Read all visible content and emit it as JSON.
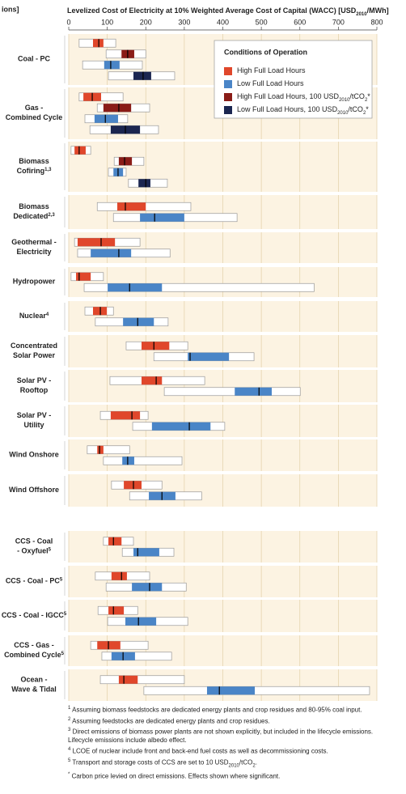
{
  "chart_data": {
    "type": "range",
    "corner_label": "ions]",
    "title": [
      {
        "text": "Levelized Cost of Electricity at 10% Weighted Average Cost of Capital (WACC) [USD"
      },
      {
        "sub": "2010"
      },
      {
        "text": "/MWh]"
      }
    ],
    "xlim": [
      0,
      800
    ],
    "xticks": [
      0,
      100,
      200,
      300,
      400,
      500,
      600,
      700,
      800
    ],
    "grid": true,
    "legend_title": "Conditions of Operation",
    "legend_position": "top-right",
    "categories": [
      {
        "lines": [
          "Coal - PC"
        ]
      },
      {
        "lines": [
          "Gas -",
          "Combined Cycle"
        ]
      },
      {
        "lines": [
          "Biomass",
          "Cofiring"
        ],
        "note": "1,3"
      },
      {
        "lines": [
          "Biomass",
          "Dedicated"
        ],
        "note": "2,3"
      },
      {
        "lines": [
          "Geothermal -",
          "Electricity"
        ]
      },
      {
        "lines": [
          "Hydropower"
        ]
      },
      {
        "lines": [
          "Nuclear"
        ],
        "note": "4"
      },
      {
        "lines": [
          "Concentrated",
          "Solar Power"
        ]
      },
      {
        "lines": [
          "Solar PV -",
          "Rooftop"
        ]
      },
      {
        "lines": [
          "Solar PV -",
          "Utility"
        ]
      },
      {
        "lines": [
          "Wind Onshore"
        ]
      },
      {
        "lines": [
          "Wind Offshore"
        ]
      },
      {
        "lines": [
          "CCS - Coal",
          "- Oxyfuel"
        ],
        "note": "5"
      },
      {
        "lines": [
          "CCS -  Coal - PC"
        ],
        "note": "5"
      },
      {
        "lines": [
          "CCS - Coal - IGCC"
        ],
        "note": "5"
      },
      {
        "lines": [
          "CCS - Gas -",
          "Combined Cycle"
        ],
        "note": "5"
      },
      {
        "lines": [
          "Ocean -",
          "Wave & Tidal"
        ]
      }
    ],
    "series": [
      {
        "name": [
          {
            "text": "High Full Load Hours"
          }
        ],
        "color": "#e0472b",
        "values": [
          {
            "min": 27,
            "q1": 63,
            "median": 78,
            "q3": 90,
            "max": 122
          },
          {
            "min": 27,
            "q1": 38,
            "median": 61,
            "q3": 84,
            "max": 141
          },
          {
            "min": 6,
            "q1": 15,
            "median": 27,
            "q3": 44,
            "max": 57
          },
          {
            "min": 74,
            "q1": 126,
            "median": 147,
            "q3": 200,
            "max": 317
          },
          {
            "min": 15,
            "q1": 23,
            "median": 84,
            "q3": 120,
            "max": 185
          },
          {
            "min": 6,
            "q1": 19,
            "median": 27,
            "q3": 57,
            "max": 90
          },
          {
            "min": 42,
            "q1": 63,
            "median": 82,
            "q3": 99,
            "max": 116
          },
          {
            "min": 149,
            "q1": 189,
            "median": 221,
            "q3": 261,
            "max": 309
          },
          {
            "min": 107,
            "q1": 189,
            "median": 227,
            "q3": 242,
            "max": 353
          },
          {
            "min": 82,
            "q1": 109,
            "median": 164,
            "q3": 185,
            "max": 206
          },
          {
            "min": 48,
            "q1": 74,
            "median": 80,
            "q3": 90,
            "max": 158
          },
          {
            "min": 111,
            "q1": 143,
            "median": 168,
            "q3": 189,
            "max": 242
          },
          {
            "min": 90,
            "q1": 103,
            "median": 116,
            "q3": 137,
            "max": 168
          },
          {
            "min": 69,
            "q1": 111,
            "median": 137,
            "q3": 151,
            "max": 210
          },
          {
            "min": 76,
            "q1": 103,
            "median": 116,
            "q3": 143,
            "max": 179
          },
          {
            "min": 57,
            "q1": 74,
            "median": 103,
            "q3": 134,
            "max": 206
          },
          {
            "min": 82,
            "q1": 130,
            "median": 143,
            "q3": 179,
            "max": 300
          }
        ]
      },
      {
        "name": [
          {
            "text": "Low Full Load Hours"
          }
        ],
        "color": "#4a85c7",
        "values": [
          {
            "min": 36,
            "q1": 92,
            "median": 109,
            "q3": 132,
            "max": 191
          },
          {
            "min": 42,
            "q1": 67,
            "median": 95,
            "q3": 128,
            "max": 153
          },
          {
            "min": 103,
            "q1": 116,
            "median": 128,
            "q3": 141,
            "max": 149
          },
          {
            "min": 116,
            "q1": 185,
            "median": 223,
            "q3": 300,
            "max": 437
          },
          {
            "min": 23,
            "q1": 57,
            "median": 130,
            "q3": 162,
            "max": 263
          },
          {
            "min": 40,
            "q1": 101,
            "median": 158,
            "q3": 242,
            "max": 637
          },
          {
            "min": 69,
            "q1": 141,
            "median": 179,
            "q3": 221,
            "max": 258
          },
          {
            "min": 221,
            "q1": 309,
            "median": 315,
            "q3": 416,
            "max": 481
          },
          {
            "min": 248,
            "q1": 431,
            "median": 494,
            "q3": 527,
            "max": 601
          },
          {
            "min": 166,
            "q1": 216,
            "median": 313,
            "q3": 368,
            "max": 405
          },
          {
            "min": 90,
            "q1": 139,
            "median": 153,
            "q3": 170,
            "max": 294
          },
          {
            "min": 158,
            "q1": 208,
            "median": 242,
            "q3": 277,
            "max": 345
          },
          {
            "min": 139,
            "q1": 168,
            "median": 179,
            "q3": 235,
            "max": 273
          },
          {
            "min": 97,
            "q1": 164,
            "median": 210,
            "q3": 242,
            "max": 305
          },
          {
            "min": 101,
            "q1": 147,
            "median": 181,
            "q3": 227,
            "max": 309
          },
          {
            "min": 86,
            "q1": 111,
            "median": 141,
            "q3": 172,
            "max": 267
          },
          {
            "min": 195,
            "q1": 359,
            "median": 391,
            "q3": 483,
            "max": 781
          }
        ]
      },
      {
        "name": [
          {
            "text": "High Full Load Hours, 100 USD"
          },
          {
            "sub": "2010"
          },
          {
            "text": "/tCO"
          },
          {
            "sub": "2"
          },
          {
            "text": "*"
          }
        ],
        "color": "#8a1c17",
        "values": [
          {
            "min": 97,
            "q1": 137,
            "median": 153,
            "q3": 170,
            "max": 200
          },
          {
            "min": 74,
            "q1": 90,
            "median": 130,
            "q3": 162,
            "max": 210
          },
          {
            "min": 118,
            "q1": 130,
            "median": 145,
            "q3": 164,
            "max": 195
          },
          null,
          null,
          null,
          null,
          null,
          null,
          null,
          null,
          null,
          null,
          null,
          null,
          null,
          null
        ]
      },
      {
        "name": [
          {
            "text": "Low Full Load Hours, 100 USD"
          },
          {
            "sub": "2010"
          },
          {
            "text": "/tCO"
          },
          {
            "sub": "2"
          },
          {
            "text": "*"
          }
        ],
        "color": "#1b2650",
        "values": [
          {
            "min": 103,
            "q1": 168,
            "median": 193,
            "q3": 214,
            "max": 275
          },
          {
            "min": 55,
            "q1": 109,
            "median": 147,
            "q3": 185,
            "max": 233
          },
          {
            "min": 155,
            "q1": 181,
            "median": 200,
            "q3": 212,
            "max": 256
          },
          null,
          null,
          null,
          null,
          null,
          null,
          null,
          null,
          null,
          null,
          null,
          null,
          null,
          null
        ]
      }
    ],
    "footnotes": [
      {
        "mark": "1",
        "text": [
          {
            "text": "Assuming biomass feedstocks are dedicated energy plants and crop residues and 80-95% coal input."
          }
        ]
      },
      {
        "mark": "2",
        "text": [
          {
            "text": "Assuming feedstocks are dedicated energy plants and crop residues."
          }
        ]
      },
      {
        "mark": "3",
        "text": [
          {
            "text": "Direct emissions of biomass power plants are not shown explicitly, but included in the lifecycle emissions. Lifecycle emissions include albedo effect."
          }
        ]
      },
      {
        "mark": "4",
        "text": [
          {
            "text": "LCOE of nuclear include front and back-end fuel costs as well as decommissioning costs."
          }
        ]
      },
      {
        "mark": "5",
        "text": [
          {
            "text": "Transport and storage costs of CCS are set to 10 USD"
          },
          {
            "sub": "2010"
          },
          {
            "text": "/tCO"
          },
          {
            "sub": "2"
          },
          {
            "text": "."
          }
        ]
      },
      {
        "mark": "*",
        "text": [
          {
            "text": "Carbon price levied on direct emissions. Effects shown where significant."
          }
        ]
      }
    ]
  }
}
